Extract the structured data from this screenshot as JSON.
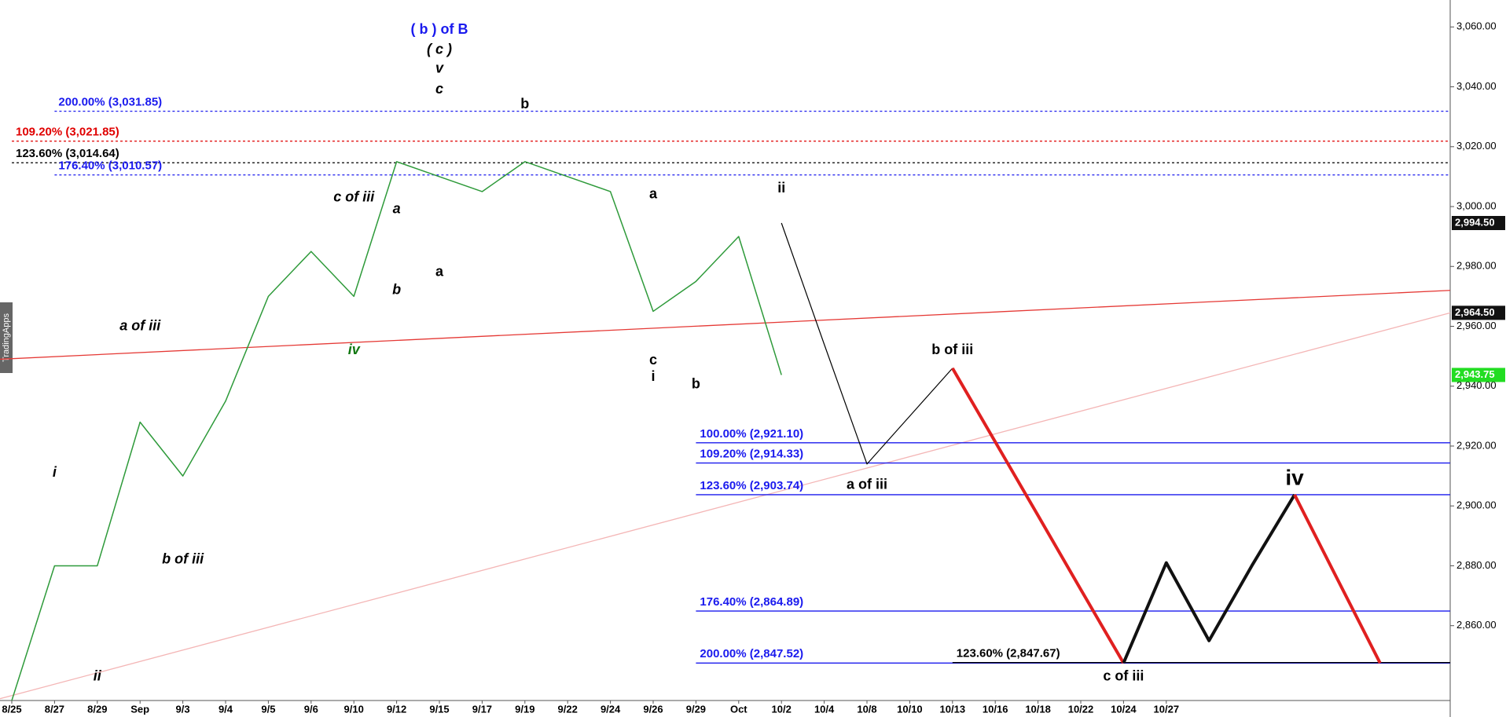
{
  "chart_data": {
    "type": "line",
    "watermark": "TradingApps",
    "categories": [
      "8/25",
      "8/27",
      "8/29",
      "Sep",
      "9/3",
      "9/4",
      "9/5",
      "9/6",
      "9/10",
      "9/12",
      "9/15",
      "9/17",
      "9/19",
      "9/22",
      "9/24",
      "9/26",
      "9/29",
      "Oct",
      "10/2",
      "10/4",
      "10/8",
      "10/10",
      "10/13",
      "10/16",
      "10/18",
      "10/22",
      "10/24",
      "10/27",
      null,
      null,
      null,
      null,
      null,
      null
    ],
    "ylim": [
      2835,
      3069
    ],
    "yticks": [
      {
        "value": 2860,
        "label": "2,860.00"
      },
      {
        "value": 2880,
        "label": "2,880.00"
      },
      {
        "value": 2900,
        "label": "2,900.00"
      },
      {
        "value": 2920,
        "label": "2,920.00"
      },
      {
        "value": 2940,
        "label": "2,940.00"
      },
      {
        "value": 2960,
        "label": "2,960.00"
      },
      {
        "value": 2980,
        "label": "2,980.00"
      },
      {
        "value": 3000,
        "label": "3,000.00"
      },
      {
        "value": 3020,
        "label": "3,020.00"
      },
      {
        "value": 3040,
        "label": "3,040.00"
      },
      {
        "value": 3060,
        "label": "3,060.00"
      }
    ],
    "series": [
      {
        "color": "#2e9a3a",
        "width": 1.5,
        "values": [
          2835,
          2880,
          2880,
          2928,
          2910,
          2935,
          2970,
          2985,
          2970,
          3015,
          3010,
          3005,
          3015,
          3010,
          3005,
          2965,
          2975,
          2990,
          2943.75,
          null,
          null,
          null,
          null,
          null,
          null,
          null,
          null,
          null,
          null,
          null,
          null,
          null,
          null,
          null
        ]
      },
      {
        "color": "#000000",
        "width": 1.2,
        "values": [
          null,
          null,
          null,
          null,
          null,
          null,
          null,
          null,
          null,
          null,
          null,
          null,
          null,
          null,
          null,
          null,
          null,
          null,
          2994.5,
          2954,
          2914,
          2930,
          2946,
          null,
          null,
          null,
          null,
          null,
          null,
          null,
          null,
          null,
          null,
          null
        ]
      },
      {
        "color": "#e02020",
        "width": 4,
        "values": [
          null,
          null,
          null,
          null,
          null,
          null,
          null,
          null,
          null,
          null,
          null,
          null,
          null,
          null,
          null,
          null,
          null,
          null,
          null,
          null,
          null,
          null,
          2946,
          2921.4,
          2896.8,
          2872.1,
          2847.52,
          null,
          null,
          null,
          null,
          null,
          null,
          null
        ]
      },
      {
        "color": "#111111",
        "width": 4,
        "values": [
          null,
          null,
          null,
          null,
          null,
          null,
          null,
          null,
          null,
          null,
          null,
          null,
          null,
          null,
          null,
          null,
          null,
          null,
          null,
          null,
          null,
          null,
          null,
          null,
          null,
          null,
          2847.52,
          2881,
          2855,
          2880,
          2903.74,
          null,
          null,
          null
        ]
      },
      {
        "color": "#e02020",
        "width": 4,
        "values": [
          null,
          null,
          null,
          null,
          null,
          null,
          null,
          null,
          null,
          null,
          null,
          null,
          null,
          null,
          null,
          null,
          null,
          null,
          null,
          null,
          null,
          null,
          null,
          null,
          null,
          null,
          null,
          null,
          null,
          null,
          2903.74,
          2875.6,
          2847.52,
          null
        ]
      }
    ],
    "trendlines": [
      {
        "color": "#e53935",
        "values": [
          2949,
          2972
        ]
      },
      {
        "color": "#f4b6b6",
        "values": [
          2835.6,
          2964.5
        ]
      }
    ],
    "levels": [
      {
        "value": 3031.85,
        "label": "200.00% (3,031.85)",
        "color": "#1a1aee",
        "dashed": true,
        "from": "8/27"
      },
      {
        "value": 3021.85,
        "label": "109.20% (3,021.85)",
        "color": "#e00000",
        "dashed": true,
        "from": "8/25"
      },
      {
        "value": 3014.64,
        "label": "123.60% (3,014.64)",
        "color": "#000000",
        "dashed": true,
        "from": "8/25"
      },
      {
        "value": 3010.57,
        "label": "176.40% (3,010.57)",
        "color": "#1a1aee",
        "dashed": true,
        "from": "8/27"
      },
      {
        "value": 2921.1,
        "label": "100.00% (2,921.10)",
        "color": "#1a1aee",
        "dashed": false,
        "from": "9/29"
      },
      {
        "value": 2914.33,
        "label": "109.20% (2,914.33)",
        "color": "#1a1aee",
        "dashed": false,
        "from": "9/29"
      },
      {
        "value": 2903.74,
        "label": "123.60% (2,903.74)",
        "color": "#1a1aee",
        "dashed": false,
        "from": "9/29"
      },
      {
        "value": 2864.89,
        "label": "176.40% (2,864.89)",
        "color": "#1a1aee",
        "dashed": false,
        "from": "9/29"
      },
      {
        "value": 2847.52,
        "label": "200.00% (2,847.52)",
        "color": "#1a1aee",
        "dashed": false,
        "from": "9/29"
      },
      {
        "value": 2847.67,
        "label": "123.60% (2,847.67)",
        "color": "#000000",
        "dashed": false,
        "from": "10/13"
      }
    ],
    "price_tags": [
      {
        "value": 2994.5,
        "label": "2,994.50",
        "color": "#111111"
      },
      {
        "value": 2964.5,
        "label": "2,964.50",
        "color": "#111111"
      },
      {
        "value": 2943.75,
        "label": "2,943.75",
        "color": "#22dd22"
      }
    ],
    "annotations": [
      {
        "text": "( b ) of B",
        "at": "9/15",
        "price": 3059,
        "color": "#1a1aee"
      },
      {
        "text": "( c )",
        "at": "9/15",
        "price": 3052.3,
        "color": "#000000",
        "italic": true
      },
      {
        "text": "v",
        "at": "9/15",
        "price": 3046,
        "color": "#000000",
        "italic": true
      },
      {
        "text": "c",
        "at": "9/15",
        "price": 3039,
        "color": "#000000",
        "italic": true
      },
      {
        "text": "b",
        "at": "9/19",
        "price": 3034,
        "color": "#000000"
      },
      {
        "text": "i",
        "at": "8/27",
        "price": 2911,
        "color": "#000000",
        "italic": true
      },
      {
        "text": "ii",
        "at": "8/29",
        "price": 2843,
        "color": "#000000",
        "italic": true
      },
      {
        "text": "a of iii",
        "at": "Sep",
        "price": 2960,
        "color": "#000000",
        "italic": true
      },
      {
        "text": "b of iii",
        "at": "9/3",
        "price": 2882,
        "color": "#000000",
        "italic": true
      },
      {
        "text": "c of iii",
        "at": "9/10",
        "price": 3003,
        "color": "#000000",
        "italic": true
      },
      {
        "text": "a",
        "at": "9/12",
        "price": 2999,
        "color": "#000000",
        "italic": true
      },
      {
        "text": "b",
        "at": "9/12",
        "price": 2972,
        "color": "#000000",
        "italic": true
      },
      {
        "text": "iv",
        "at": "9/10",
        "price": 2952,
        "color": "#117711",
        "italic": true
      },
      {
        "text": "a",
        "at": "9/15",
        "price": 2978,
        "color": "#000000"
      },
      {
        "text": "a",
        "at": "9/26",
        "price": 3004,
        "color": "#000000"
      },
      {
        "text": "ii",
        "at": "10/2",
        "price": 3006,
        "color": "#000000"
      },
      {
        "text": "c",
        "at": "9/26",
        "price": 2948.5,
        "color": "#000000"
      },
      {
        "text": "i",
        "at": "9/26",
        "price": 2943,
        "color": "#000000"
      },
      {
        "text": "b",
        "at": "9/29",
        "price": 2940.5,
        "color": "#000000"
      },
      {
        "text": "b of iii",
        "at": "10/13",
        "price": 2952,
        "color": "#000000"
      },
      {
        "text": "a of iii",
        "at": "10/8",
        "price": 2907,
        "color": "#000000"
      },
      {
        "text": "c of iii",
        "at": "10/24",
        "price": 2843,
        "color": "#000000"
      }
    ],
    "wave_iv": {
      "text": "iv",
      "price": 2909
    }
  }
}
